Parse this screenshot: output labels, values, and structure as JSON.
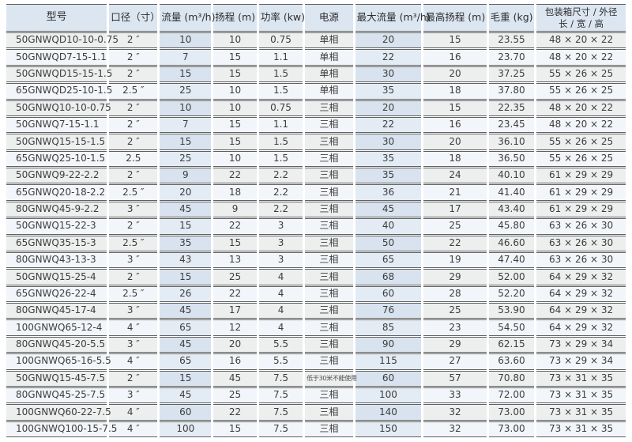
{
  "chart_data": {
    "type": "table",
    "columns": [
      {
        "key": "model",
        "label": "型号"
      },
      {
        "key": "caliber",
        "label": "口径（寸）"
      },
      {
        "key": "flow",
        "label": "流量 (m³/h)",
        "highlight": true
      },
      {
        "key": "head",
        "label": "扬程 (m)"
      },
      {
        "key": "power",
        "label": "功率 (kw)"
      },
      {
        "key": "supply",
        "label": "电源"
      },
      {
        "key": "max-flow",
        "label": "最大流量 (m³/h)",
        "highlight": true
      },
      {
        "key": "max-head",
        "label": "最高扬程 (m)"
      },
      {
        "key": "weight",
        "label": "毛重 (kg)"
      },
      {
        "key": "box",
        "label": "包装箱尺寸 / 外径",
        "label2": "长 / 宽 / 高"
      }
    ],
    "rows": [
      [
        "50GNWQD10-10-0.75",
        "2 ″",
        "10",
        "10",
        "0.75",
        "单相",
        "20",
        "15",
        "23.55",
        "48 × 20 × 22"
      ],
      [
        "50GNWQD7-15-1.1",
        "2 ″",
        "7",
        "15",
        "1.1",
        "单相",
        "22",
        "16",
        "23.70",
        "48 × 20 × 22"
      ],
      [
        "50GNWQD15-15-1.5",
        "2 ″",
        "15",
        "15",
        "1.5",
        "单相",
        "30",
        "20",
        "37.25",
        "55 × 26 × 25"
      ],
      [
        "65GNWQD25-10-1.5",
        "2.5 ″",
        "25",
        "10",
        "1.5",
        "单相",
        "35",
        "18",
        "37.80",
        "55 × 26 × 25"
      ],
      [
        "50GNWQ10-10-0.75",
        "2 ″",
        "10",
        "10",
        "0.75",
        "三相",
        "20",
        "15",
        "22.35",
        "48 × 20 × 22"
      ],
      [
        "50GNWQ7-15-1.1",
        "2 ″",
        "7",
        "15",
        "1.1",
        "三相",
        "22",
        "16",
        "23.45",
        "48 × 20 × 22"
      ],
      [
        "50GNWQ15-15-1.5",
        "2 ″",
        "15",
        "15",
        "1.5",
        "三相",
        "30",
        "20",
        "36.10",
        "55 × 26 × 25"
      ],
      [
        "65GNWQ25-10-1.5",
        "2.5",
        "25",
        "10",
        "1.5",
        "三相",
        "35",
        "18",
        "36.50",
        "55 × 26 × 25"
      ],
      [
        "50GNWQ9-22-2.2",
        "2 ″",
        "9",
        "22",
        "2.2",
        "三相",
        "35",
        "24",
        "40.10",
        "61 × 29 × 29"
      ],
      [
        "65GNWQ20-18-2.2",
        "2.5 ″",
        "20",
        "18",
        "2.2",
        "三相",
        "36",
        "21",
        "41.40",
        "61 × 29 × 29"
      ],
      [
        "80GNWQ45-9-2.2",
        "3 ″",
        "45",
        "9",
        "2.2",
        "三相",
        "45",
        "17",
        "43.40",
        "61 × 29 × 29"
      ],
      [
        "50GNWQ15-22-3",
        "2 ″",
        "15",
        "22",
        "3",
        "三相",
        "40",
        "25",
        "45.80",
        "63 × 26 × 30"
      ],
      [
        "65GNWQ35-15-3",
        "2.5 ″",
        "35",
        "15",
        "3",
        "三相",
        "50",
        "22",
        "46.60",
        "63 × 26 × 30"
      ],
      [
        "80GNWQ43-13-3",
        "3 ″",
        "43",
        "13",
        "3",
        "三相",
        "65",
        "19",
        "47.40",
        "63 × 26 × 30"
      ],
      [
        "50GNWQ15-25-4",
        "2 ″",
        "15",
        "25",
        "4",
        "三相",
        "68",
        "29",
        "52.00",
        "64 × 29 × 32"
      ],
      [
        "65GNWQ26-22-4",
        "2.5 ″",
        "26",
        "22",
        "4",
        "三相",
        "60",
        "28",
        "52.20",
        "64 × 29 × 32"
      ],
      [
        "80GNWQ45-17-4",
        "3 ″",
        "45",
        "17",
        "4",
        "三相",
        "76",
        "25",
        "53.90",
        "64 × 29 × 32"
      ],
      [
        "100GNWQ65-12-4",
        "4 ″",
        "65",
        "12",
        "4",
        "三相",
        "85",
        "23",
        "54.50",
        "64 × 29 × 32"
      ],
      [
        "80GNWQ45-20-5.5",
        "3 ″",
        "45",
        "20",
        "5.5",
        "三相",
        "90",
        "29",
        "62.15",
        "73 × 29 × 34"
      ],
      [
        "100GNWQ65-16-5.5",
        "4 ″",
        "65",
        "16",
        "5.5",
        "三相",
        "115",
        "27",
        "63.60",
        "73 × 29 × 34"
      ],
      [
        "50GNWQ15-45-7.5",
        "2 ″",
        "15",
        "45",
        "7.5",
        "低于30米不能使用",
        "60",
        "57",
        "70.80",
        "73 × 31 × 35"
      ],
      [
        "80GNWQ45-25-7.5",
        "3 ″",
        "45",
        "25",
        "7.5",
        "三相",
        "100",
        "33",
        "72.00",
        "73 × 31 × 35"
      ],
      [
        "100GNWQ60-22-7.5",
        "4 ″",
        "60",
        "22",
        "7.5",
        "三相",
        "140",
        "32",
        "73.00",
        "73 × 31 × 35"
      ],
      [
        "100GNWQ100-15-7.5",
        "4 ″",
        "100",
        "15",
        "7.5",
        "三相",
        "150",
        "32",
        "73.00",
        "73 × 31 × 35"
      ]
    ]
  },
  "colors": {
    "header_bg": "#dce6f1",
    "row_odd_bg": "#edefef",
    "row_even_bg": "#f2f6fa",
    "highlight_col_odd_bg": "#d8e3ef",
    "highlight_col_even_bg": "#e3ebf4",
    "row_border": "#5f5f5f",
    "text": "#3d3d3d"
  }
}
